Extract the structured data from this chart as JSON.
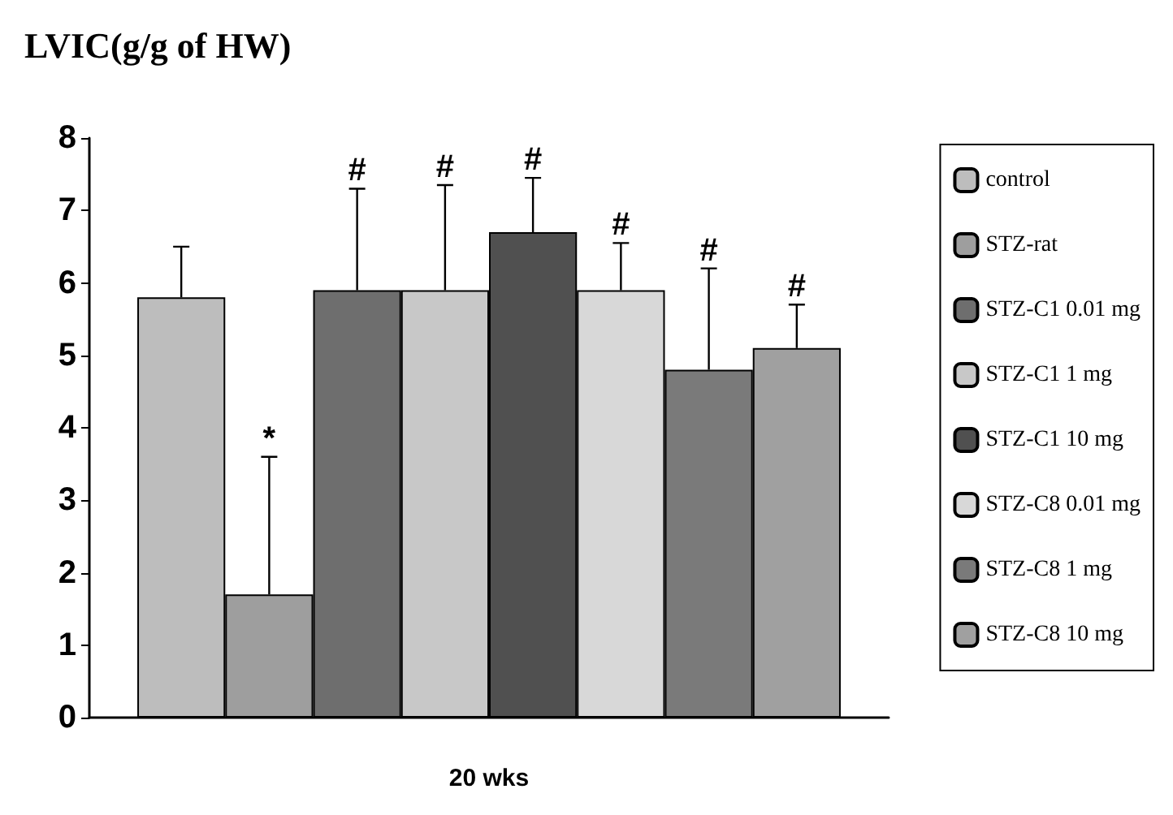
{
  "chart_data": {
    "type": "bar",
    "title": "LVIC(g/g of HW)",
    "categories": [
      "20 wks"
    ],
    "series": [
      {
        "name": "control",
        "color": "#bdbdbd",
        "values": [
          5.8
        ],
        "errors": [
          [
            5.8,
            6.5
          ]
        ]
      },
      {
        "name": "STZ-rat",
        "color": "#9e9e9e",
        "values": [
          1.7
        ],
        "errors": [
          [
            1.7,
            3.6
          ]
        ]
      },
      {
        "name": "STZ-C1 0.01 mg",
        "color": "#6e6e6e",
        "values": [
          5.9
        ],
        "errors": [
          [
            5.9,
            7.3
          ]
        ]
      },
      {
        "name": "STZ-C1 1 mg",
        "color": "#c8c8c8",
        "values": [
          5.9
        ],
        "errors": [
          [
            5.9,
            7.35
          ]
        ]
      },
      {
        "name": "STZ-C1 10 mg",
        "color": "#505050",
        "values": [
          6.7
        ],
        "errors": [
          [
            6.7,
            7.45
          ]
        ]
      },
      {
        "name": "STZ-C8 0.01 mg",
        "color": "#d8d8d8",
        "values": [
          5.9
        ],
        "errors": [
          [
            5.9,
            6.55
          ]
        ]
      },
      {
        "name": "STZ-C8 1 mg",
        "color": "#7a7a7a",
        "values": [
          4.8
        ],
        "errors": [
          [
            4.8,
            6.2
          ]
        ]
      },
      {
        "name": "STZ-C8 10 mg",
        "color": "#a0a0a0",
        "values": [
          5.1
        ],
        "errors": [
          [
            5.1,
            5.7
          ]
        ]
      }
    ],
    "annotations": [
      "*",
      "#",
      "#",
      "#",
      "#",
      "#",
      "#"
    ],
    "ylim": [
      0,
      8
    ],
    "yticks": [
      0,
      1,
      2,
      3,
      4,
      5,
      6,
      7,
      8
    ],
    "grid": false,
    "legend": "right"
  }
}
